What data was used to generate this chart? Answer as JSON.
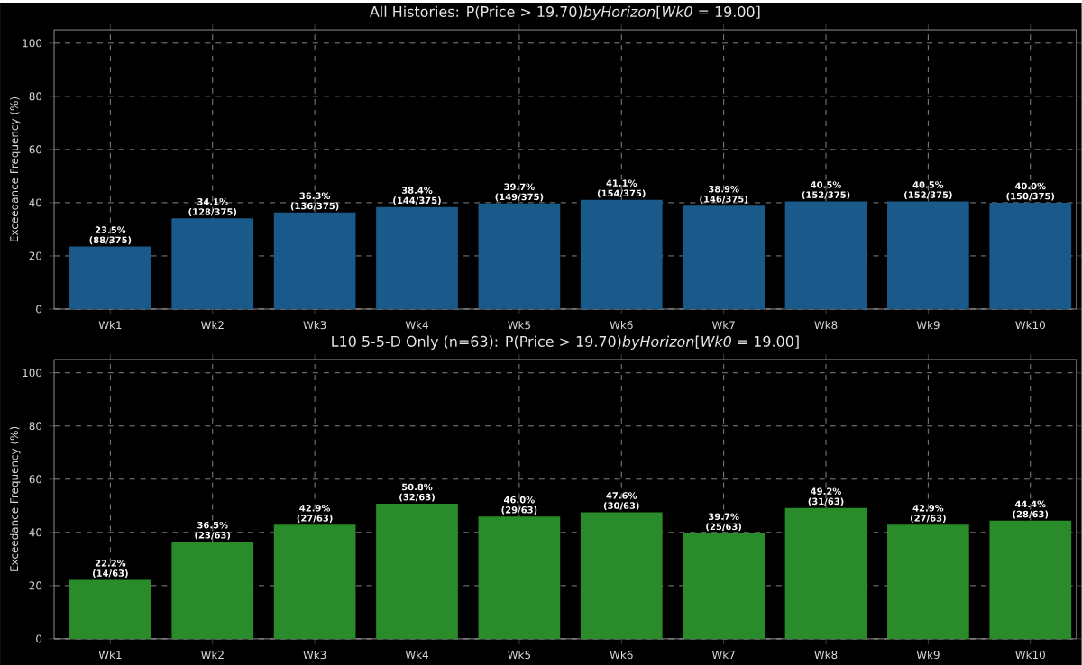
{
  "chart_data": [
    {
      "type": "bar",
      "title": "All Histories: P(Price > 19.70)*byHorizon*[*Wk0* = 19.00]",
      "ylabel": "Exceedance Frequency (%)",
      "categories": [
        "Wk1",
        "Wk2",
        "Wk3",
        "Wk4",
        "Wk5",
        "Wk6",
        "Wk7",
        "Wk8",
        "Wk9",
        "Wk10"
      ],
      "values": [
        23.5,
        34.1,
        36.3,
        38.4,
        39.7,
        41.1,
        38.9,
        40.5,
        40.5,
        40.0
      ],
      "value_labels": [
        "23.5% (88/375)",
        "34.1% (128/375)",
        "36.3% (136/375)",
        "38.4% (144/375)",
        "39.7% (149/375)",
        "41.1% (154/375)",
        "38.9% (146/375)",
        "40.5% (152/375)",
        "40.5% (152/375)",
        "40.0% (150/375)"
      ],
      "color": "#1a5a8a",
      "ylim": [
        0,
        105
      ],
      "yticks": [
        0,
        20,
        40,
        60,
        80,
        100
      ],
      "grid": true
    },
    {
      "type": "bar",
      "title": "L10 5-5-D Only (n=63): P(Price > 19.70)*byHorizon*[*Wk0* = 19.00]",
      "ylabel": "Exceedance Frequency (%)",
      "categories": [
        "Wk1",
        "Wk2",
        "Wk3",
        "Wk4",
        "Wk5",
        "Wk6",
        "Wk7",
        "Wk8",
        "Wk9",
        "Wk10"
      ],
      "values": [
        22.2,
        36.5,
        42.9,
        50.8,
        46.0,
        47.6,
        39.7,
        49.2,
        42.9,
        44.4
      ],
      "value_labels": [
        "22.2% (14/63)",
        "36.5% (23/63)",
        "42.9% (27/63)",
        "50.8% (32/63)",
        "46.0% (29/63)",
        "47.6% (30/63)",
        "39.7% (25/63)",
        "49.2% (31/63)",
        "42.9% (27/63)",
        "44.4% (28/63)"
      ],
      "color": "#2a8b2a",
      "ylim": [
        0,
        105
      ],
      "yticks": [
        0,
        20,
        40,
        60,
        80,
        100
      ],
      "grid": true
    }
  ]
}
